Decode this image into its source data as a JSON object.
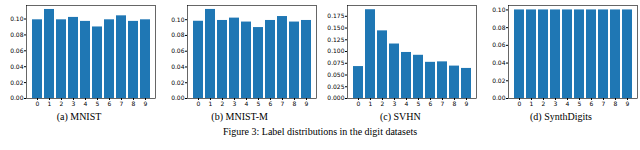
{
  "caption": "Figure 3: Label distributions in the digit datasets",
  "chart_data": [
    {
      "type": "bar",
      "title": "(a) MNIST",
      "color": "#1f77b4",
      "grid": false,
      "categories": [
        "0",
        "1",
        "2",
        "3",
        "4",
        "5",
        "6",
        "7",
        "8",
        "9"
      ],
      "values": [
        0.099,
        0.112,
        0.099,
        0.102,
        0.097,
        0.09,
        0.099,
        0.104,
        0.097,
        0.099
      ],
      "ylim": [
        0,
        0.117
      ],
      "yticks": [
        {
          "value": 0,
          "label": "0.00"
        },
        {
          "value": 0.02,
          "label": "0.02"
        },
        {
          "value": 0.04,
          "label": "0.04"
        },
        {
          "value": 0.06,
          "label": "0.06"
        },
        {
          "value": 0.08,
          "label": "0.08"
        },
        {
          "value": 0.1,
          "label": "0.10"
        }
      ]
    },
    {
      "type": "bar",
      "title": "(b) MNIST-M",
      "color": "#1f77b4",
      "grid": false,
      "categories": [
        "0",
        "1",
        "2",
        "3",
        "4",
        "5",
        "6",
        "7",
        "8",
        "9"
      ],
      "values": [
        0.098,
        0.113,
        0.099,
        0.102,
        0.097,
        0.09,
        0.099,
        0.104,
        0.097,
        0.099
      ],
      "ylim": [
        0,
        0.118
      ],
      "yticks": [
        {
          "value": 0,
          "label": "0.00"
        },
        {
          "value": 0.02,
          "label": "0.02"
        },
        {
          "value": 0.04,
          "label": "0.04"
        },
        {
          "value": 0.06,
          "label": "0.06"
        },
        {
          "value": 0.08,
          "label": "0.08"
        },
        {
          "value": 0.1,
          "label": "0.10"
        }
      ]
    },
    {
      "type": "bar",
      "title": "(c) SVHN",
      "color": "#1f77b4",
      "grid": false,
      "categories": [
        "0",
        "1",
        "2",
        "3",
        "4",
        "5",
        "6",
        "7",
        "8",
        "9"
      ],
      "values": [
        0.068,
        0.189,
        0.144,
        0.116,
        0.098,
        0.092,
        0.077,
        0.078,
        0.069,
        0.064
      ],
      "ylim": [
        0,
        0.198
      ],
      "yticks": [
        {
          "value": 0,
          "label": "0.000"
        },
        {
          "value": 0.025,
          "label": "0.025"
        },
        {
          "value": 0.05,
          "label": "0.050"
        },
        {
          "value": 0.075,
          "label": "0.075"
        },
        {
          "value": 0.1,
          "label": "0.100"
        },
        {
          "value": 0.125,
          "label": "0.125"
        },
        {
          "value": 0.15,
          "label": "0.150"
        },
        {
          "value": 0.175,
          "label": "0.175"
        }
      ]
    },
    {
      "type": "bar",
      "title": "(d) SynthDigits",
      "color": "#1f77b4",
      "grid": false,
      "categories": [
        "0",
        "1",
        "2",
        "3",
        "4",
        "5",
        "6",
        "7",
        "8",
        "9"
      ],
      "values": [
        0.1,
        0.1,
        0.1,
        0.1,
        0.1,
        0.1,
        0.1,
        0.1,
        0.1,
        0.1
      ],
      "ylim": [
        0,
        0.105
      ],
      "yticks": [
        {
          "value": 0,
          "label": "0.00"
        },
        {
          "value": 0.02,
          "label": "0.02"
        },
        {
          "value": 0.04,
          "label": "0.04"
        },
        {
          "value": 0.06,
          "label": "0.06"
        },
        {
          "value": 0.08,
          "label": "0.08"
        },
        {
          "value": 0.1,
          "label": "0.10"
        }
      ]
    }
  ]
}
